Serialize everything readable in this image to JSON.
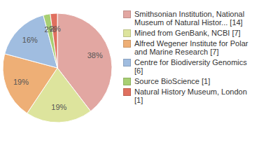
{
  "chart_data": {
    "type": "pie",
    "categories": [
      "Smithsonian Institution, National Museum of Natural Histor... [14]",
      "Mined from GenBank, NCBI [7]",
      "Alfred Wegener Institute for Polar and Marine Research [7]",
      "Centre for Biodiversity Genomics [6]",
      "Source BioScience [1]",
      "Natural History Museum, London [1]"
    ],
    "values": [
      38,
      19,
      19,
      16,
      2,
      2
    ],
    "value_labels": [
      "38%",
      "19%",
      "19%",
      "16%",
      "2%",
      "2%"
    ],
    "colors": [
      "#e2a7a2",
      "#dde49d",
      "#eeaf76",
      "#a0bde0",
      "#a8cf73",
      "#e0705f"
    ],
    "data_labels": true,
    "legend": "right"
  }
}
